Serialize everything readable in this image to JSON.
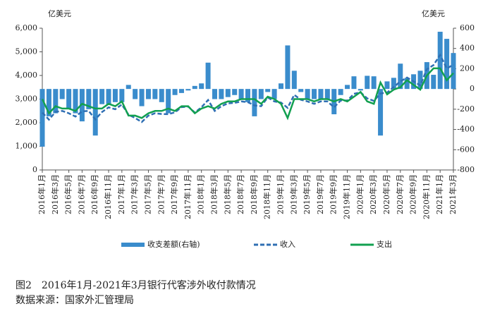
{
  "chart_data": {
    "type": "bar-line",
    "title": "图2　2016年1月-2021年3月银行代客涉外收付款情况",
    "source": "数据来源：国家外汇管理局",
    "y_unit": "亿美元",
    "y2_unit": "亿美元",
    "categories": [
      "2016年1月",
      null,
      "2016年3月",
      null,
      "2016年5月",
      null,
      "2016年7月",
      null,
      "2016年9月",
      null,
      "2016年11月",
      null,
      "2017年1月",
      null,
      "2017年3月",
      null,
      "2017年5月",
      null,
      "2017年7月",
      null,
      "2017年9月",
      null,
      "2017年11月",
      null,
      "2018年1月",
      null,
      "2018年3月",
      null,
      "2018年5月",
      null,
      "2018年7月",
      null,
      "2018年9月",
      null,
      "2018年11月",
      null,
      "2019年1月",
      null,
      "2019年3月",
      null,
      "2019年5月",
      null,
      "2019年7月",
      null,
      "2019年9月",
      null,
      "2019年11月",
      null,
      "2020年1月",
      null,
      "2020年3月",
      null,
      "2020年5月",
      null,
      "2020年7月",
      null,
      "2020年9月",
      null,
      "2020年11月",
      null,
      "2021年1月",
      null,
      "2021年3月"
    ],
    "series": [
      {
        "name": "收支差额(右轴)",
        "kind": "bar",
        "axis": "y2",
        "color": "#3a8ccc",
        "values": [
          -570,
          -270,
          -240,
          -100,
          -200,
          -240,
          -320,
          -200,
          -460,
          -150,
          -150,
          -130,
          -130,
          40,
          -100,
          -170,
          -100,
          -100,
          -130,
          -240,
          -60,
          -40,
          -15,
          30,
          55,
          260,
          -100,
          -100,
          -80,
          -60,
          -100,
          -130,
          -270,
          -100,
          -30,
          -100,
          55,
          430,
          180,
          -30,
          -100,
          -100,
          -100,
          -100,
          -250,
          -60,
          40,
          125,
          -15,
          130,
          125,
          -460,
          75,
          110,
          250,
          110,
          145,
          180,
          265,
          140,
          565,
          495,
          355
        ]
      },
      {
        "name": "收入",
        "kind": "dashed-line",
        "color": "#2f6fb3",
        "values": [
          2430,
          2130,
          2460,
          2500,
          2400,
          2260,
          2480,
          2500,
          2140,
          2450,
          2650,
          2570,
          2770,
          2340,
          2200,
          2030,
          2300,
          2400,
          2370,
          2360,
          2440,
          2660,
          2685,
          2430,
          2655,
          2960,
          2500,
          2700,
          2820,
          2840,
          2900,
          2870,
          2730,
          2700,
          3070,
          2900,
          2855,
          2630,
          3180,
          2970,
          2900,
          2800,
          2900,
          2900,
          2650,
          2940,
          2940,
          3225,
          3285,
          3030,
          2925,
          3240,
          3275,
          3510,
          3750,
          3910,
          3745,
          3580,
          4265,
          4440,
          4865,
          4295,
          4455
        ]
      },
      {
        "name": "支出",
        "kind": "line",
        "color": "#12a050",
        "values": [
          3000,
          2400,
          2700,
          2600,
          2600,
          2500,
          2800,
          2700,
          2600,
          2600,
          2800,
          2700,
          2900,
          2300,
          2300,
          2200,
          2400,
          2500,
          2500,
          2600,
          2500,
          2700,
          2700,
          2400,
          2600,
          2700,
          2600,
          2800,
          2900,
          2900,
          3000,
          3000,
          3000,
          2800,
          3100,
          3000,
          2800,
          2200,
          3000,
          3000,
          3000,
          2900,
          3000,
          3000,
          2900,
          3000,
          2900,
          3100,
          3300,
          2900,
          2800,
          3700,
          3200,
          3400,
          3500,
          3800,
          3600,
          3400,
          4000,
          4300,
          4300,
          3800,
          4100
        ]
      }
    ],
    "ylim": [
      0,
      6000
    ],
    "yticks": [
      0,
      {
        "value": 1000,
        "label": "1,000"
      },
      {
        "value": 2000,
        "label": "2,000"
      },
      {
        "value": 3000,
        "label": "3,000"
      },
      {
        "value": 4000,
        "label": "4,000"
      },
      {
        "value": 5000,
        "label": "5,000"
      },
      {
        "value": 6000,
        "label": "6,000"
      }
    ],
    "y2lim": [
      -800,
      600
    ],
    "y2ticks": [
      -800,
      -600,
      -400,
      -200,
      0,
      200,
      400,
      600
    ]
  }
}
